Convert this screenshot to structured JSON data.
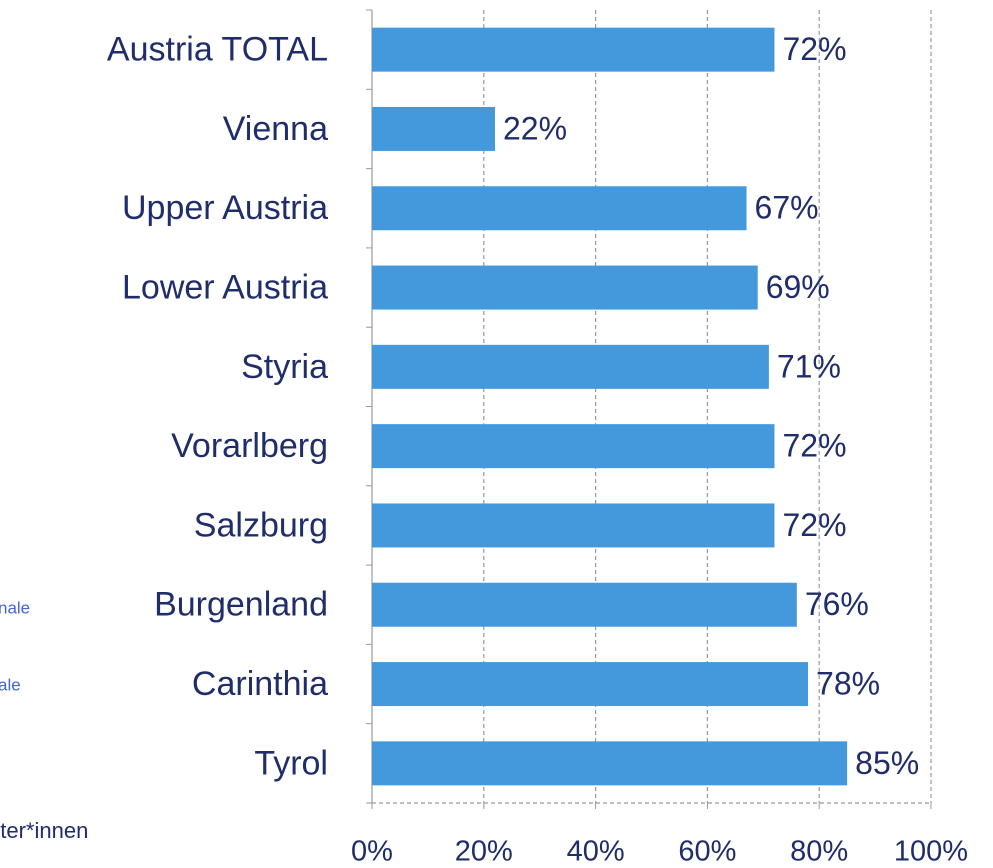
{
  "chart_data": {
    "type": "bar",
    "orientation": "horizontal",
    "categories": [
      "Austria TOTAL",
      "Vienna",
      "Upper Austria",
      "Lower Austria",
      "Styria",
      "Vorarlberg",
      "Salzburg",
      "Burgenland",
      "Carinthia",
      "Tyrol"
    ],
    "values": [
      72,
      22,
      67,
      69,
      71,
      72,
      72,
      76,
      78,
      85
    ],
    "value_labels": [
      "72%",
      "22%",
      "67%",
      "69%",
      "71%",
      "72%",
      "72%",
      "76%",
      "78%",
      "85%"
    ],
    "color": "#4499dd",
    "xlim": [
      0,
      100
    ],
    "xticks": [
      {
        "value": 0,
        "label": "0%"
      },
      {
        "value": 20,
        "label": "20%"
      },
      {
        "value": 40,
        "label": "40%"
      },
      {
        "value": 60,
        "label": "60%"
      },
      {
        "value": 80,
        "label": "80%"
      },
      {
        "value": 100,
        "label": "100%"
      }
    ],
    "grid": true,
    "annotations": [
      "nale",
      "ale",
      "eter*innen"
    ]
  }
}
